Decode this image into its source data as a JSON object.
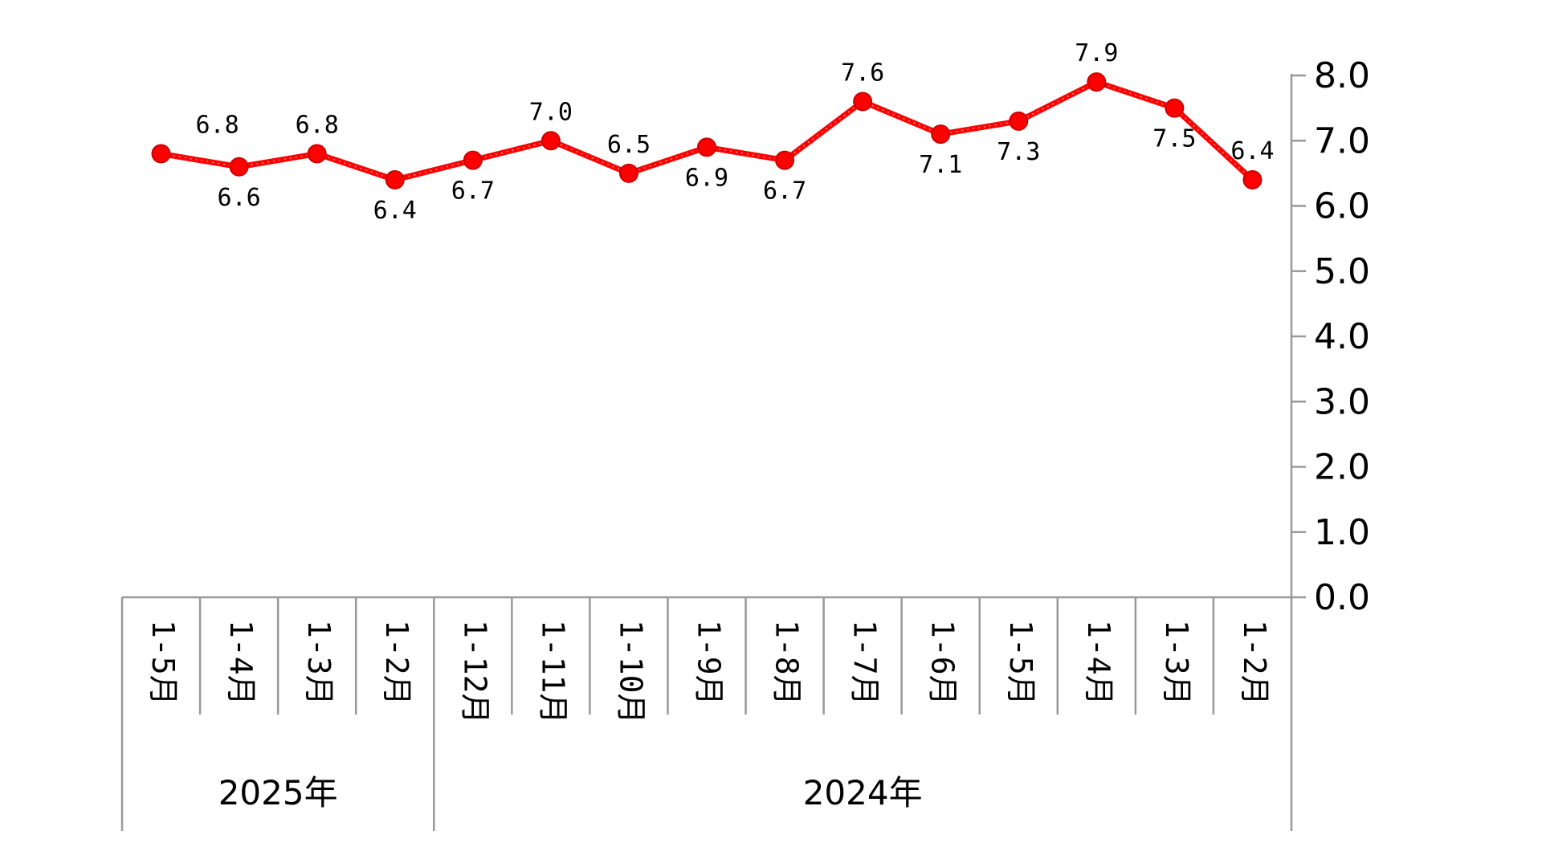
{
  "chart_data": {
    "type": "line",
    "mirrored": true,
    "categories": [
      "1-2月",
      "1-3月",
      "1-4月",
      "1-5月",
      "1-6月",
      "1-7月",
      "1-8月",
      "1-9月",
      "1-10月",
      "1-11月",
      "1-12月",
      "1-2月",
      "1-3月",
      "1-4月",
      "1-5月"
    ],
    "groups": [
      {
        "label": "2024年",
        "count": 11
      },
      {
        "label": "2025年",
        "count": 4
      }
    ],
    "series": [
      {
        "values": [
          6.4,
          7.5,
          7.9,
          7.3,
          7.1,
          7.6,
          6.7,
          6.9,
          6.5,
          7.0,
          6.7,
          6.4,
          6.8,
          6.6,
          6.8
        ],
        "labels": [
          "6.4",
          "7.5",
          "7.9",
          "7.3",
          "7.1",
          "7.6",
          "6.7",
          "6.9",
          "6.5",
          "7.0",
          "6.7",
          "6.4",
          "6.8",
          "6.6",
          "6.8"
        ]
      }
    ],
    "y_ticks": [
      "0.0",
      "1.0",
      "2.0",
      "3.0",
      "4.0",
      "5.0",
      "6.0",
      "7.0",
      "8.0"
    ],
    "ylim": [
      0,
      8
    ],
    "grid": false,
    "legend": "none",
    "title": "",
    "xlabel": "",
    "ylabel": "",
    "colors": {
      "line": "#ff0000",
      "marker_fill": "#ff0000",
      "marker_stroke": "#cc0000",
      "axis": "#999999",
      "text": "#000000"
    }
  }
}
